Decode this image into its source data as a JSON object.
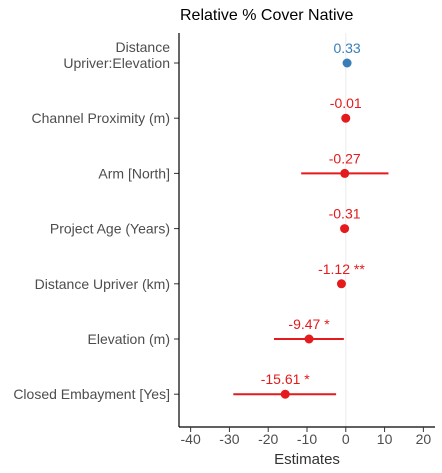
{
  "chart_data": {
    "type": "scatter",
    "subtype": "forest-plot",
    "title": "Relative % Cover Native",
    "xlabel": "Estimates",
    "ylabel": "",
    "xlim": [
      -43,
      23
    ],
    "xticks": [
      -40,
      -30,
      -20,
      -10,
      0,
      10,
      20
    ],
    "xtick_labels": [
      "-40",
      "-30",
      "-20",
      "-10",
      "0",
      "10",
      "20"
    ],
    "zero_line": 0,
    "grid": false,
    "legend": "none",
    "colors": {
      "positive": "#377eb8",
      "negative": "#e41a1c"
    },
    "terms": [
      {
        "label": [
          "Distance",
          "Upriver:Elevation"
        ],
        "estimate": 0.33,
        "ci_low": null,
        "ci_high": null,
        "display": "0.33",
        "sign": "positive"
      },
      {
        "label": [
          "Channel Proximity (m)"
        ],
        "estimate": -0.01,
        "ci_low": null,
        "ci_high": null,
        "display": "-0.01",
        "sign": "negative"
      },
      {
        "label": [
          "Arm [North]"
        ],
        "estimate": -0.27,
        "ci_low": -11.5,
        "ci_high": 11.0,
        "display": "-0.27",
        "sign": "negative"
      },
      {
        "label": [
          "Project Age (Years)"
        ],
        "estimate": -0.31,
        "ci_low": null,
        "ci_high": null,
        "display": "-0.31",
        "sign": "negative"
      },
      {
        "label": [
          "Distance Upriver (km)"
        ],
        "estimate": -1.12,
        "ci_low": null,
        "ci_high": null,
        "display": "-1.12 **",
        "sign": "negative"
      },
      {
        "label": [
          "Elevation (m)"
        ],
        "estimate": -9.47,
        "ci_low": -18.5,
        "ci_high": -0.5,
        "display": "-9.47 *",
        "sign": "negative"
      },
      {
        "label": [
          "Closed Embayment [Yes]"
        ],
        "estimate": -15.61,
        "ci_low": -29.0,
        "ci_high": -2.5,
        "display": "-15.61 *",
        "sign": "negative"
      }
    ]
  }
}
